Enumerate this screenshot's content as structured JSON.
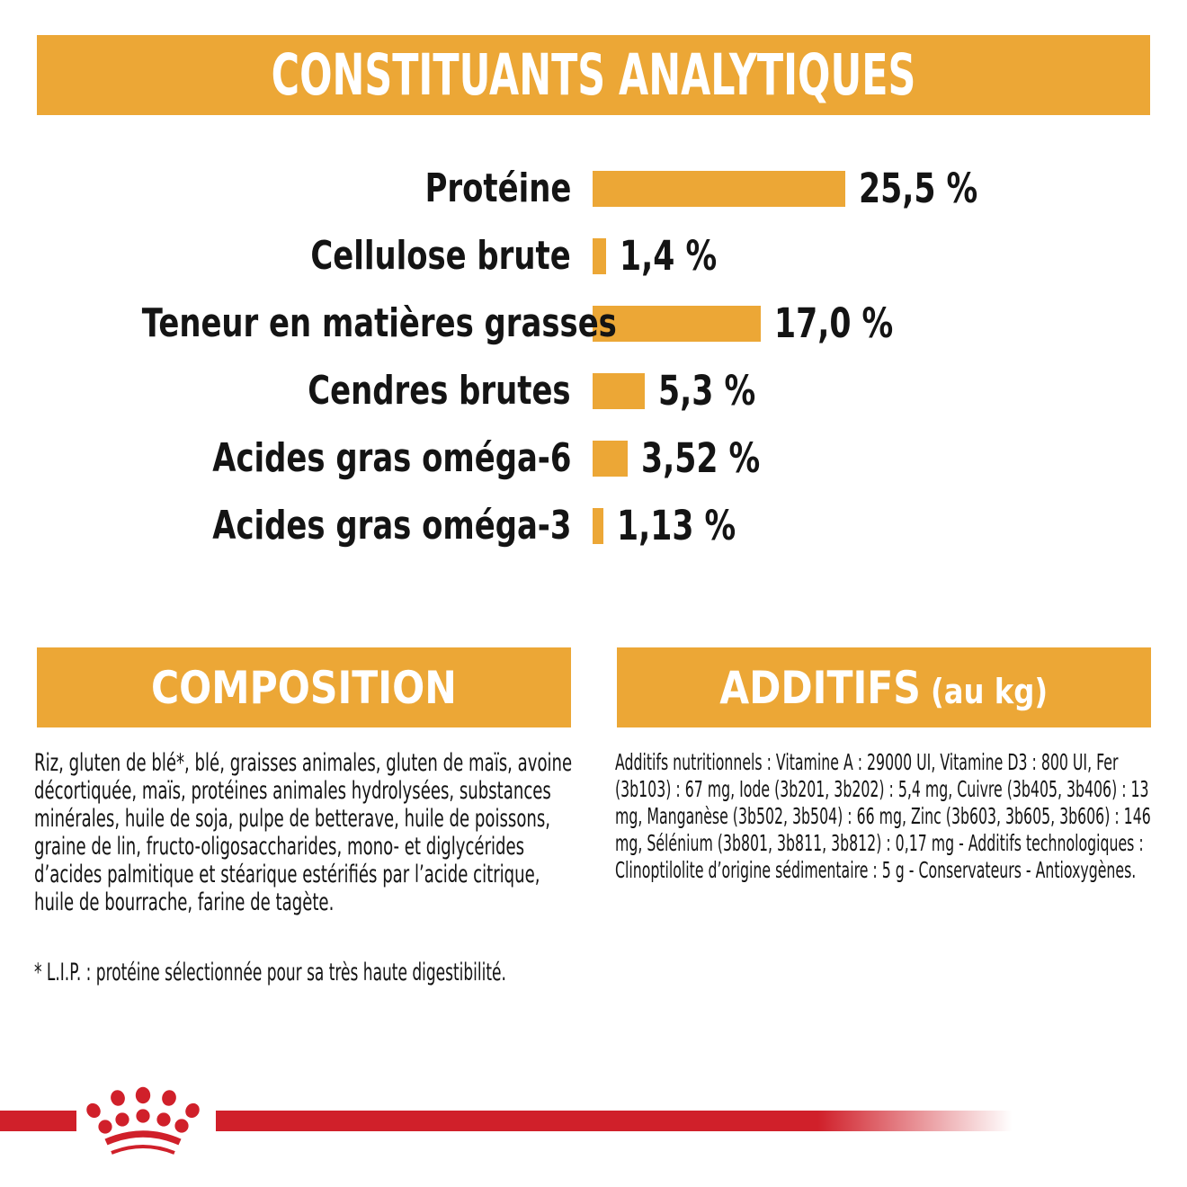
{
  "colors": {
    "accent_yellow": "#ECA736",
    "brand_red": "#D0202A",
    "text_black": "#141414",
    "header_text": "#FFFFFF"
  },
  "analytical_constituents": {
    "title": "CONSTITUANTS ANALYTIQUES",
    "chart_data": {
      "type": "bar",
      "orientation": "horizontal",
      "categories": [
        "Protéine",
        "Cellulose brute",
        "Teneur en matières grasses",
        "Cendres brutes",
        "Acides gras oméga-6",
        "Acides gras oméga-3"
      ],
      "values": [
        25.5,
        1.4,
        17.0,
        5.3,
        3.52,
        1.13
      ],
      "value_labels": [
        "25,5 %",
        "1,4 %",
        "17,0 %",
        "5,3 %",
        "3,52 %",
        "1,13 %"
      ],
      "unit": "%",
      "xlim": [
        0,
        25.5
      ],
      "bar_color": "#ECA736",
      "legend": "none",
      "grid": false
    }
  },
  "composition": {
    "title": "COMPOSITION",
    "body": "Riz, gluten de blé*, blé, graisses animales, gluten de maïs, avoine décortiquée, maïs, protéines animales hydrolysées, substances minérales, huile de soja, pulpe de betterave, huile de poissons, graine de lin, fructo-oligosaccharides, mono- et diglycérides d’acides palmitique et stéarique estérifiés par l’acide citrique, huile de bourrache, farine de tagète.",
    "footnote": "* L.I.P. : protéine sélectionnée pour sa très haute digestibilité."
  },
  "additives": {
    "title": "ADDITIFS",
    "title_suffix": "(au kg)",
    "body": "Additifs nutritionnels : Vitamine A : 29000 UI, Vitamine D3 : 800 UI, Fer (3b103) : 67 mg, Iode (3b201, 3b202) : 5,4 mg, Cuivre (3b405, 3b406) : 13 mg, Manganèse (3b502, 3b504) : 66 mg, Zinc (3b603, 3b605, 3b606) : 146 mg, Sélénium (3b801, 3b811, 3b812) : 0,17 mg - Additifs technologiques : Clinoptilolite d’origine sédimentaire : 5 g - Conservateurs - Antioxygènes.",
    "footer_logo": "royal-canin-crown-logo"
  }
}
